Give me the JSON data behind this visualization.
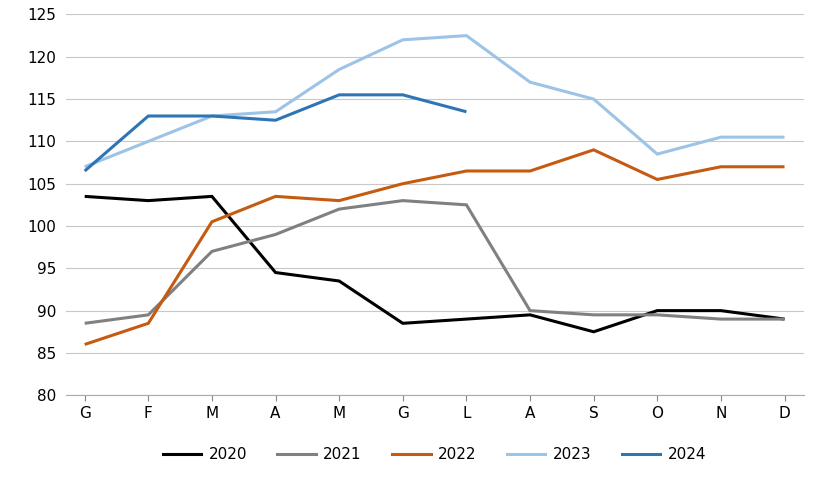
{
  "months": [
    "G",
    "F",
    "M",
    "A",
    "M",
    "G",
    "L",
    "A",
    "S",
    "O",
    "N",
    "D"
  ],
  "series": {
    "2020": [
      103.5,
      103.0,
      103.5,
      94.5,
      93.5,
      88.5,
      89.0,
      89.5,
      87.5,
      90.0,
      90.0,
      89.0
    ],
    "2021": [
      88.5,
      89.5,
      97.0,
      99.0,
      102.0,
      103.0,
      102.5,
      90.0,
      89.5,
      89.5,
      89.0,
      89.0
    ],
    "2022": [
      86.0,
      88.5,
      100.5,
      103.5,
      103.0,
      105.0,
      106.5,
      106.5,
      109.0,
      105.5,
      107.0,
      107.0
    ],
    "2023": [
      107.0,
      110.0,
      113.0,
      113.5,
      118.5,
      122.0,
      122.5,
      117.0,
      115.0,
      108.5,
      110.5,
      110.5
    ],
    "2024": [
      106.5,
      113.0,
      113.0,
      112.5,
      115.5,
      115.5,
      113.5,
      null,
      null,
      null,
      null,
      null
    ]
  },
  "series_order": [
    "2020",
    "2021",
    "2022",
    "2023",
    "2024"
  ],
  "colors": {
    "2020": "#000000",
    "2021": "#808080",
    "2022": "#c55a11",
    "2023": "#9dc3e6",
    "2024": "#2e75b6"
  },
  "ylim": [
    80,
    125
  ],
  "yticks": [
    80,
    85,
    90,
    95,
    100,
    105,
    110,
    115,
    120,
    125
  ],
  "linewidth": 2.2,
  "background_color": "#ffffff",
  "grid_color": "#c8c8c8",
  "tick_fontsize": 11,
  "legend_fontsize": 11
}
